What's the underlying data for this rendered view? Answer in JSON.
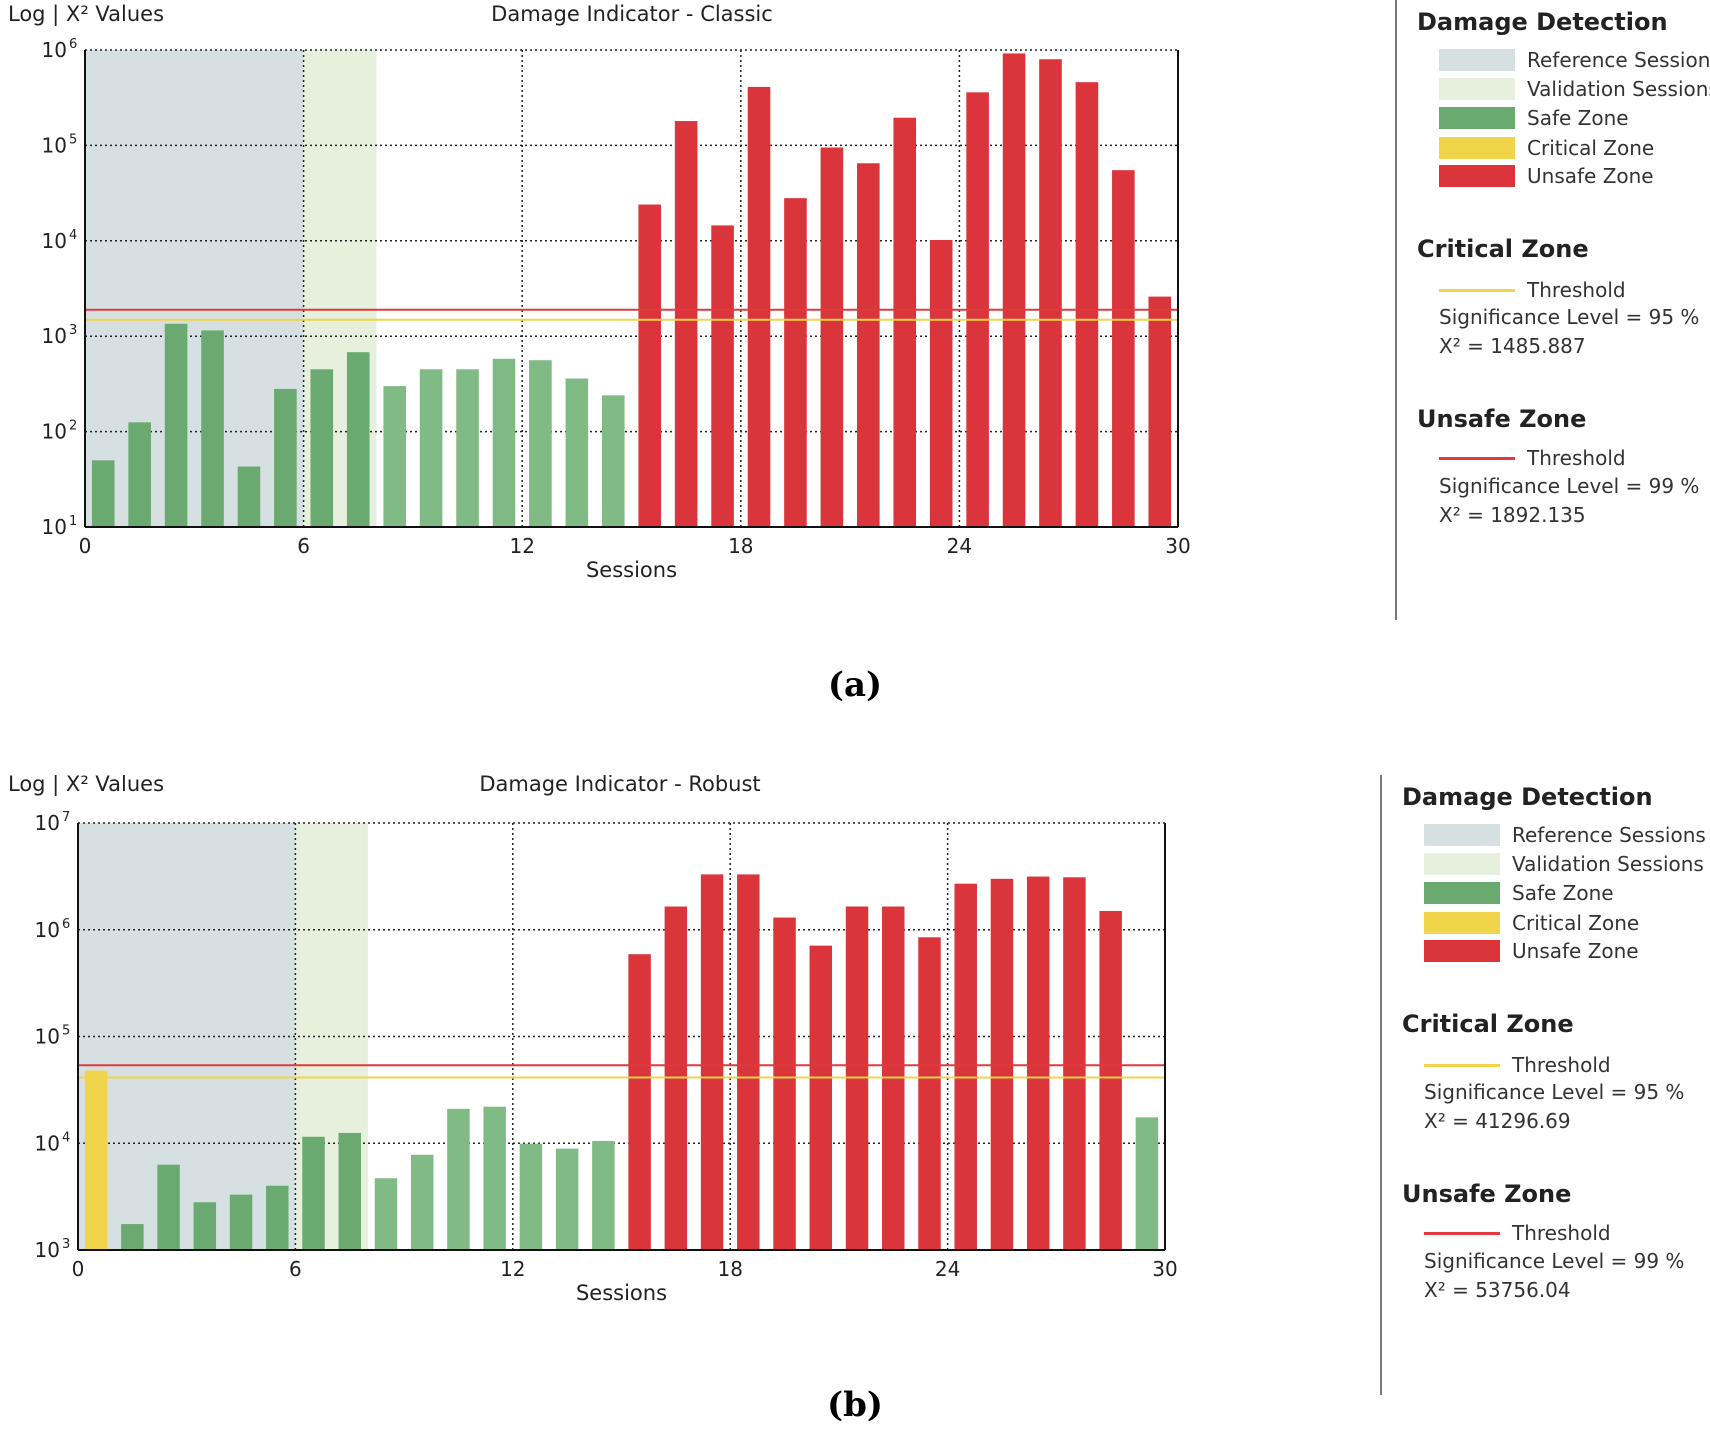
{
  "colors": {
    "reference": "#d6e0e2",
    "validation": "#e6f0dc",
    "safe": "#6aa96f",
    "safe_light": "#80bb86",
    "critical": "#f0d44a",
    "unsafe": "#d9353a",
    "critical_line": "#f0d44a",
    "unsafe_line": "#e03a3e"
  },
  "chart_data": [
    {
      "type": "bar",
      "title": "Damage Indicator - Classic",
      "ylabel": "Log | X² Values",
      "xlabel": "Sessions",
      "y_scale": "log",
      "ylim": [
        10,
        1000000
      ],
      "xlim": [
        0,
        30
      ],
      "x_ticks": [
        "0",
        "6",
        "12",
        "18",
        "24",
        "30"
      ],
      "y_ticks": [
        {
          "value": 10,
          "base": "10",
          "exp": "1"
        },
        {
          "value": 100,
          "base": "10",
          "exp": "2"
        },
        {
          "value": 1000,
          "base": "10",
          "exp": "3"
        },
        {
          "value": 10000,
          "base": "10",
          "exp": "4"
        },
        {
          "value": 100000,
          "base": "10",
          "exp": "5"
        },
        {
          "value": 1000000,
          "base": "10",
          "exp": "6"
        }
      ],
      "reference_sessions": [
        0,
        6
      ],
      "validation_sessions": [
        6,
        8
      ],
      "thresholds": {
        "critical": 1485.887,
        "unsafe": 1892.135
      },
      "sessions": [
        1,
        2,
        3,
        4,
        5,
        6,
        7,
        8,
        9,
        10,
        11,
        12,
        13,
        14,
        15,
        16,
        17,
        18,
        19,
        20,
        21,
        22,
        23,
        24,
        25,
        26,
        27,
        28,
        29,
        30
      ],
      "values": [
        50,
        125,
        1350,
        1150,
        43,
        280,
        450,
        680,
        300,
        450,
        450,
        580,
        560,
        360,
        240,
        24000,
        180000,
        14500,
        410000,
        28000,
        95000,
        65000,
        195000,
        10200,
        360000,
        920000,
        800000,
        460000,
        55000,
        2600
      ],
      "zones": [
        "safe",
        "safe",
        "safe",
        "safe",
        "safe",
        "safe",
        "safe",
        "safe",
        "safe",
        "safe",
        "safe",
        "safe",
        "safe",
        "safe",
        "safe",
        "unsafe",
        "unsafe",
        "unsafe",
        "unsafe",
        "unsafe",
        "unsafe",
        "unsafe",
        "unsafe",
        "unsafe",
        "unsafe",
        "unsafe",
        "unsafe",
        "unsafe",
        "unsafe",
        "unsafe"
      ]
    },
    {
      "type": "bar",
      "title": "Damage Indicator - Robust",
      "ylabel": "Log | X² Values",
      "xlabel": "Sessions",
      "y_scale": "log",
      "ylim": [
        1000,
        10000000
      ],
      "xlim": [
        0,
        30
      ],
      "x_ticks": [
        "0",
        "6",
        "12",
        "18",
        "24",
        "30"
      ],
      "y_ticks": [
        {
          "value": 1000,
          "base": "10",
          "exp": "3"
        },
        {
          "value": 10000,
          "base": "10",
          "exp": "4"
        },
        {
          "value": 100000,
          "base": "10",
          "exp": "5"
        },
        {
          "value": 1000000,
          "base": "10",
          "exp": "6"
        },
        {
          "value": 10000000,
          "base": "10",
          "exp": "7"
        }
      ],
      "reference_sessions": [
        0,
        6
      ],
      "validation_sessions": [
        6,
        8
      ],
      "thresholds": {
        "critical": 41296.69,
        "unsafe": 53756.04
      },
      "sessions": [
        1,
        2,
        3,
        4,
        5,
        6,
        7,
        8,
        9,
        10,
        11,
        12,
        13,
        14,
        15,
        16,
        17,
        18,
        19,
        20,
        21,
        22,
        23,
        24,
        25,
        26,
        27,
        28,
        29,
        30
      ],
      "values": [
        48000,
        1750,
        6300,
        2800,
        3300,
        4000,
        11500,
        12500,
        4700,
        7800,
        21000,
        22000,
        9900,
        8900,
        10500,
        590000,
        1650000,
        3300000,
        3300000,
        1300000,
        710000,
        1650000,
        1650000,
        850000,
        2700000,
        3000000,
        3150000,
        3100000,
        1500000,
        17500
      ],
      "zones": [
        "critical",
        "safe",
        "safe",
        "safe",
        "safe",
        "safe",
        "safe",
        "safe",
        "safe",
        "safe",
        "safe",
        "safe",
        "safe",
        "safe",
        "safe",
        "unsafe",
        "unsafe",
        "unsafe",
        "unsafe",
        "unsafe",
        "unsafe",
        "unsafe",
        "unsafe",
        "unsafe",
        "unsafe",
        "unsafe",
        "unsafe",
        "unsafe",
        "unsafe",
        "safe"
      ]
    }
  ],
  "panels": {
    "a": {
      "label": "(a)",
      "legend": {
        "heading": "Damage Detection",
        "items": [
          "Reference Sessions",
          "Validation Sessions",
          "Safe Zone",
          "Critical Zone",
          "Unsafe Zone"
        ],
        "critical_heading": "Critical Zone",
        "critical_threshold": "Threshold",
        "critical_sig": "Significance Level = 95 %",
        "critical_chi": "X² = 1485.887",
        "unsafe_heading": "Unsafe Zone",
        "unsafe_threshold": "Threshold",
        "unsafe_sig": "Significance Level = 99 %",
        "unsafe_chi": "X² = 1892.135"
      }
    },
    "b": {
      "label": "(b)",
      "legend": {
        "heading": "Damage Detection",
        "items": [
          "Reference Sessions",
          "Validation Sessions",
          "Safe Zone",
          "Critical Zone",
          "Unsafe Zone"
        ],
        "critical_heading": "Critical Zone",
        "critical_threshold": "Threshold",
        "critical_sig": "Significance Level = 95 %",
        "critical_chi": "X² = 41296.69",
        "unsafe_heading": "Unsafe Zone",
        "unsafe_threshold": "Threshold",
        "unsafe_sig": "Significance Level = 99 %",
        "unsafe_chi": "X² = 53756.04"
      }
    }
  }
}
